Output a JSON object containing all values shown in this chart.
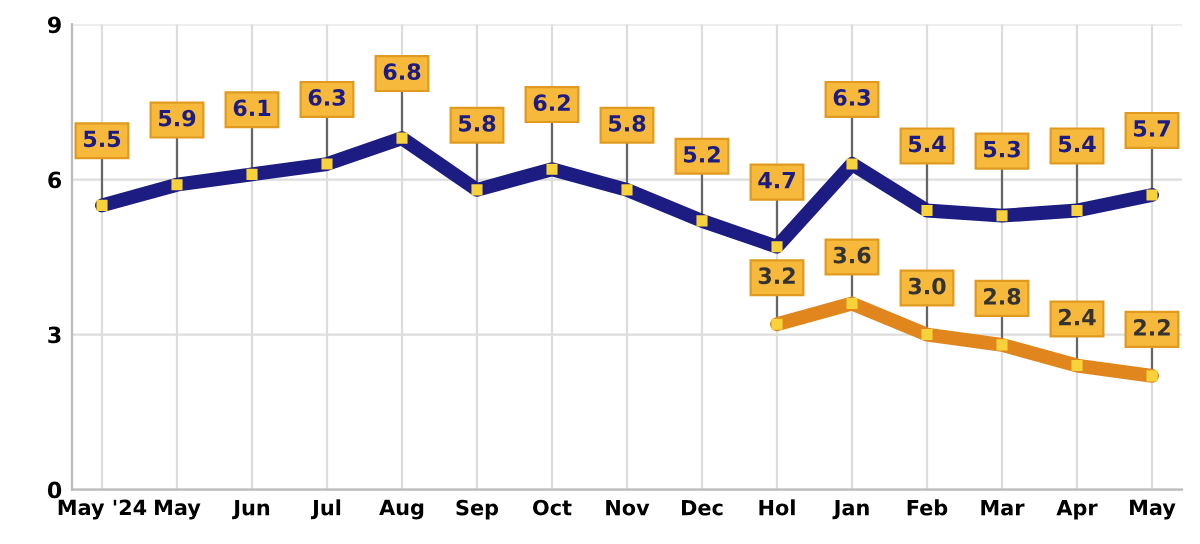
{
  "chart_data": {
    "type": "line",
    "categories": [
      "May '24",
      "May",
      "Jun",
      "Jul",
      "Aug",
      "Sep",
      "Oct",
      "Nov",
      "Dec",
      "Hol",
      "Jan",
      "Feb",
      "Mar",
      "Apr",
      "May"
    ],
    "series": [
      {
        "color": "#1c1c82",
        "values": [
          5.5,
          5.9,
          6.1,
          6.3,
          6.8,
          5.8,
          6.2,
          5.8,
          5.2,
          4.7,
          6.3,
          5.4,
          5.3,
          5.4,
          5.7
        ],
        "value_labels": [
          "5.5",
          "5.9",
          "6.1",
          "6.3",
          "6.8",
          "5.8",
          "6.2",
          "5.8",
          "5.2",
          "4.7",
          "6.3",
          "5.4",
          "5.3",
          "5.4",
          "5.7"
        ]
      },
      {
        "color": "#e0861c",
        "values": [
          null,
          null,
          null,
          null,
          null,
          null,
          null,
          null,
          null,
          3.2,
          3.6,
          3.0,
          2.8,
          2.4,
          2.2
        ],
        "value_labels": [
          null,
          null,
          null,
          null,
          null,
          null,
          null,
          null,
          null,
          "3.2",
          "3.6",
          "3.0",
          "2.8",
          "2.4",
          "2.2"
        ]
      }
    ],
    "ylim": [
      0,
      9
    ],
    "yticks": [
      0,
      3,
      6,
      9
    ],
    "grid": true,
    "marker": "square",
    "line_style": "solid"
  }
}
